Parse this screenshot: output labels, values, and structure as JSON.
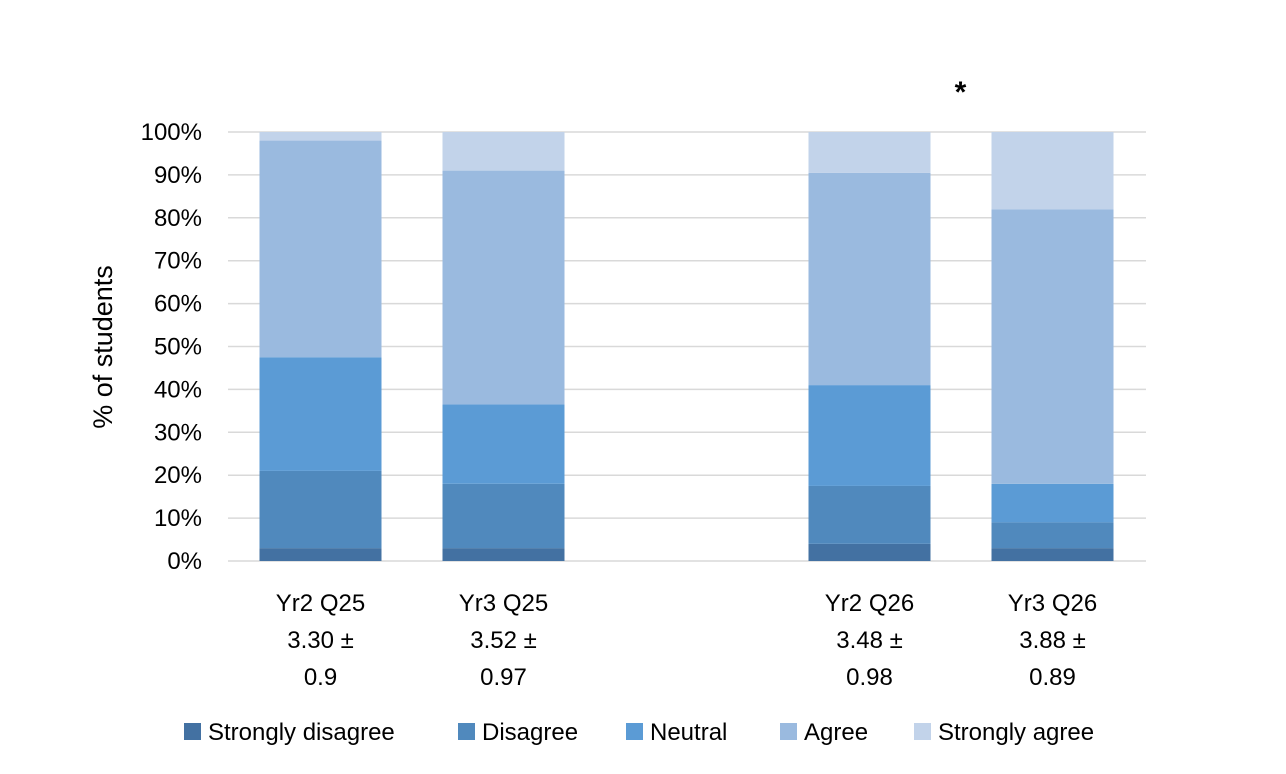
{
  "chart_data": {
    "type": "bar",
    "stacked": true,
    "title": "",
    "xlabel": "",
    "ylabel": "% of students",
    "ylim": [
      0,
      100
    ],
    "ytick_values": [
      0,
      10,
      20,
      30,
      40,
      50,
      60,
      70,
      80,
      90,
      100
    ],
    "ytick_labels": [
      "0%",
      "10%",
      "20%",
      "30%",
      "40%",
      "50%",
      "60%",
      "70%",
      "80%",
      "90%",
      "100%"
    ],
    "grid": true,
    "legend_position": "bottom",
    "categories": [
      {
        "lines": [
          "Yr2 Q25",
          "3.30 ±",
          "0.9"
        ],
        "slot": 0
      },
      {
        "lines": [
          "Yr3 Q25",
          "3.52 ±",
          "0.97"
        ],
        "slot": 1
      },
      {
        "lines": [
          "Yr2 Q26",
          "3.48 ±",
          "0.98"
        ],
        "slot": 3
      },
      {
        "lines": [
          "Yr3 Q26",
          "3.88 ±",
          "0.89"
        ],
        "slot": 4
      }
    ],
    "series": [
      {
        "name": "Strongly disagree",
        "color": "#4371A2",
        "values": [
          3,
          3,
          4,
          3
        ]
      },
      {
        "name": "Disagree",
        "color": "#5089BD",
        "values": [
          18,
          15,
          13.5,
          6
        ]
      },
      {
        "name": "Neutral",
        "color": "#5B9BD5",
        "values": [
          26.5,
          18.5,
          23.5,
          9
        ]
      },
      {
        "name": "Agree",
        "color": "#9ABADF",
        "values": [
          50.5,
          54.5,
          49.5,
          64
        ]
      },
      {
        "name": "Strongly agree",
        "color": "#C2D3EA",
        "values": [
          2,
          9,
          9.5,
          18
        ]
      }
    ],
    "annotations": [
      {
        "text": "*",
        "near_category": 3
      }
    ],
    "gridline_color": "#D9D9D9",
    "axis_line_color": "#D9D9D9"
  }
}
